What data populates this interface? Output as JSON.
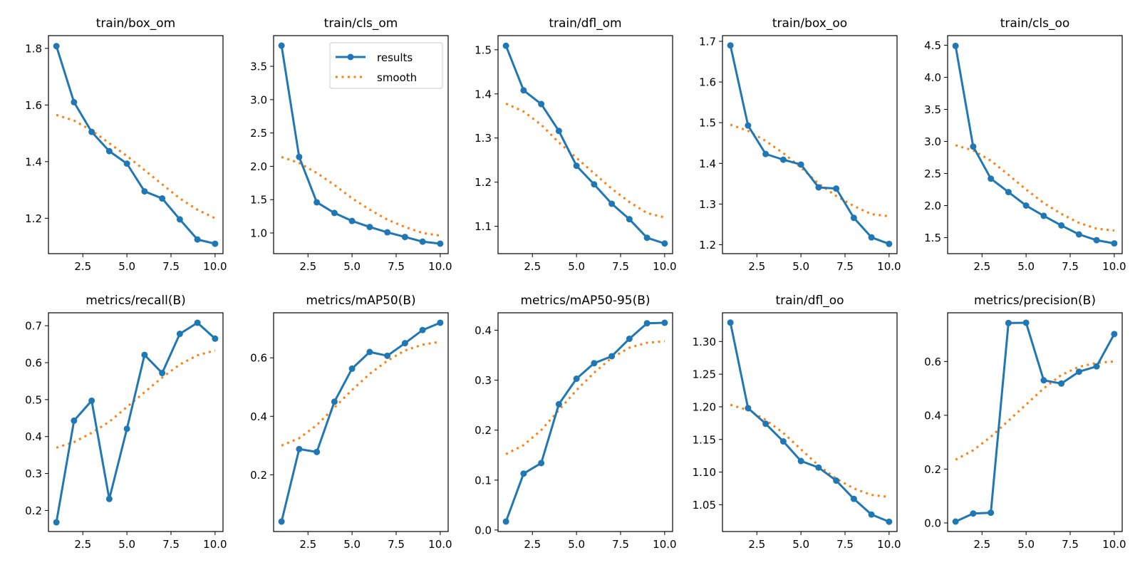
{
  "legend": {
    "results_label": "results",
    "smooth_label": "smooth",
    "placement": "upper-right of train/cls_om panel"
  },
  "colors": {
    "results": "#1f77b4",
    "smooth": "#ff7f0e"
  },
  "chart_data": [
    {
      "type": "line",
      "title": "train/box_om",
      "x": [
        1,
        2,
        3,
        4,
        5,
        6,
        7,
        8,
        9,
        10
      ],
      "xlim": [
        0.55,
        10.45
      ],
      "xticks": [
        2.5,
        5.0,
        7.5,
        10.0
      ],
      "ylim": [
        1.075,
        1.845
      ],
      "yticks": [
        1.2,
        1.4,
        1.6,
        1.8
      ],
      "series": [
        {
          "name": "results",
          "values": [
            1.808,
            1.61,
            1.505,
            1.437,
            1.393,
            1.295,
            1.27,
            1.196,
            1.125,
            1.11
          ]
        },
        {
          "name": "smooth",
          "values": [
            1.565,
            1.545,
            1.51,
            1.465,
            1.42,
            1.37,
            1.32,
            1.27,
            1.23,
            1.2
          ]
        }
      ]
    },
    {
      "type": "line",
      "title": "train/cls_om",
      "x": [
        1,
        2,
        3,
        4,
        5,
        6,
        7,
        8,
        9,
        10
      ],
      "xlim": [
        0.55,
        10.45
      ],
      "xticks": [
        2.5,
        5.0,
        7.5,
        10.0
      ],
      "ylim": [
        0.69,
        3.96
      ],
      "yticks": [
        1.0,
        1.5,
        2.0,
        2.5,
        3.0,
        3.5
      ],
      "legend": true,
      "series": [
        {
          "name": "results",
          "values": [
            3.81,
            2.14,
            1.46,
            1.3,
            1.18,
            1.09,
            1.01,
            0.94,
            0.87,
            0.84
          ]
        },
        {
          "name": "smooth",
          "values": [
            2.14,
            2.05,
            1.9,
            1.72,
            1.52,
            1.35,
            1.2,
            1.09,
            1.0,
            0.96
          ]
        }
      ]
    },
    {
      "type": "line",
      "title": "train/dfl_om",
      "x": [
        1,
        2,
        3,
        4,
        5,
        6,
        7,
        8,
        9,
        10
      ],
      "xlim": [
        0.55,
        10.45
      ],
      "xticks": [
        2.5,
        5.0,
        7.5,
        10.0
      ],
      "ylim": [
        1.038,
        1.532
      ],
      "yticks": [
        1.1,
        1.2,
        1.3,
        1.4,
        1.5
      ],
      "series": [
        {
          "name": "results",
          "values": [
            1.509,
            1.408,
            1.377,
            1.316,
            1.237,
            1.195,
            1.151,
            1.116,
            1.074,
            1.061
          ]
        },
        {
          "name": "smooth",
          "values": [
            1.378,
            1.36,
            1.33,
            1.29,
            1.255,
            1.22,
            1.185,
            1.155,
            1.13,
            1.12
          ]
        }
      ]
    },
    {
      "type": "line",
      "title": "train/box_oo",
      "x": [
        1,
        2,
        3,
        4,
        5,
        6,
        7,
        8,
        9,
        10
      ],
      "xlim": [
        0.55,
        10.45
      ],
      "xticks": [
        2.5,
        5.0,
        7.5,
        10.0
      ],
      "ylim": [
        1.178,
        1.714
      ],
      "yticks": [
        1.2,
        1.3,
        1.4,
        1.5,
        1.6,
        1.7
      ],
      "series": [
        {
          "name": "results",
          "values": [
            1.69,
            1.493,
            1.423,
            1.409,
            1.397,
            1.341,
            1.338,
            1.266,
            1.218,
            1.202
          ]
        },
        {
          "name": "smooth",
          "values": [
            1.495,
            1.48,
            1.455,
            1.425,
            1.39,
            1.35,
            1.32,
            1.295,
            1.275,
            1.27
          ]
        }
      ]
    },
    {
      "type": "line",
      "title": "train/cls_oo",
      "x": [
        1,
        2,
        3,
        4,
        5,
        6,
        7,
        8,
        9,
        10
      ],
      "xlim": [
        0.55,
        10.45
      ],
      "xticks": [
        2.5,
        5.0,
        7.5,
        10.0
      ],
      "ylim": [
        1.25,
        4.65
      ],
      "yticks": [
        1.5,
        2.0,
        2.5,
        3.0,
        3.5,
        4.0,
        4.5
      ],
      "series": [
        {
          "name": "results",
          "values": [
            4.49,
            2.92,
            2.42,
            2.21,
            2.0,
            1.84,
            1.69,
            1.55,
            1.46,
            1.41
          ]
        },
        {
          "name": "smooth",
          "values": [
            2.94,
            2.86,
            2.7,
            2.48,
            2.25,
            2.04,
            1.87,
            1.73,
            1.64,
            1.61
          ]
        }
      ]
    },
    {
      "type": "line",
      "title": "metrics/recall(B)",
      "x": [
        1,
        2,
        3,
        4,
        5,
        6,
        7,
        8,
        9,
        10
      ],
      "xlim": [
        0.55,
        10.45
      ],
      "xticks": [
        2.5,
        5.0,
        7.5,
        10.0
      ],
      "ylim": [
        0.143,
        0.735
      ],
      "yticks": [
        0.2,
        0.3,
        0.4,
        0.5,
        0.6,
        0.7
      ],
      "series": [
        {
          "name": "results",
          "values": [
            0.168,
            0.443,
            0.497,
            0.231,
            0.421,
            0.621,
            0.572,
            0.678,
            0.708,
            0.665
          ]
        },
        {
          "name": "smooth",
          "values": [
            0.37,
            0.385,
            0.41,
            0.44,
            0.48,
            0.52,
            0.56,
            0.595,
            0.62,
            0.633
          ]
        }
      ]
    },
    {
      "type": "line",
      "title": "metrics/mAP50(B)",
      "x": [
        1,
        2,
        3,
        4,
        5,
        6,
        7,
        8,
        9,
        10
      ],
      "xlim": [
        0.55,
        10.45
      ],
      "xticks": [
        2.5,
        5.0,
        7.5,
        10.0
      ],
      "ylim": [
        0.006,
        0.754
      ],
      "yticks": [
        0.2,
        0.4,
        0.6
      ],
      "series": [
        {
          "name": "results",
          "values": [
            0.04,
            0.288,
            0.278,
            0.45,
            0.563,
            0.62,
            0.607,
            0.65,
            0.695,
            0.72
          ]
        },
        {
          "name": "smooth",
          "values": [
            0.3,
            0.325,
            0.37,
            0.43,
            0.49,
            0.545,
            0.59,
            0.625,
            0.645,
            0.655
          ]
        }
      ]
    },
    {
      "type": "line",
      "title": "metrics/mAP50-95(B)",
      "x": [
        1,
        2,
        3,
        4,
        5,
        6,
        7,
        8,
        9,
        10
      ],
      "xlim": [
        0.55,
        10.45
      ],
      "xticks": [
        2.5,
        5.0,
        7.5,
        10.0
      ],
      "ylim": [
        -0.003,
        0.435
      ],
      "yticks": [
        0.0,
        0.1,
        0.2,
        0.3,
        0.4
      ],
      "series": [
        {
          "name": "results",
          "values": [
            0.017,
            0.113,
            0.134,
            0.252,
            0.303,
            0.334,
            0.348,
            0.383,
            0.414,
            0.415
          ]
        },
        {
          "name": "smooth",
          "values": [
            0.152,
            0.17,
            0.2,
            0.24,
            0.28,
            0.315,
            0.345,
            0.365,
            0.375,
            0.378
          ]
        }
      ]
    },
    {
      "type": "line",
      "title": "train/dfl_oo",
      "x": [
        1,
        2,
        3,
        4,
        5,
        6,
        7,
        8,
        9,
        10
      ],
      "xlim": [
        0.55,
        10.45
      ],
      "xticks": [
        2.5,
        5.0,
        7.5,
        10.0
      ],
      "ylim": [
        1.009,
        1.344
      ],
      "yticks": [
        1.05,
        1.1,
        1.15,
        1.2,
        1.25,
        1.3
      ],
      "series": [
        {
          "name": "results",
          "values": [
            1.329,
            1.198,
            1.174,
            1.147,
            1.117,
            1.107,
            1.087,
            1.059,
            1.035,
            1.024
          ]
        },
        {
          "name": "smooth",
          "values": [
            1.203,
            1.195,
            1.18,
            1.16,
            1.135,
            1.11,
            1.09,
            1.075,
            1.065,
            1.062
          ]
        }
      ]
    },
    {
      "type": "line",
      "title": "metrics/precision(B)",
      "x": [
        1,
        2,
        3,
        4,
        5,
        6,
        7,
        8,
        9,
        10
      ],
      "xlim": [
        0.55,
        10.45
      ],
      "xticks": [
        2.5,
        5.0,
        7.5,
        10.0
      ],
      "ylim": [
        -0.032,
        0.781
      ],
      "yticks": [
        0.0,
        0.2,
        0.4,
        0.6
      ],
      "series": [
        {
          "name": "results",
          "values": [
            0.005,
            0.035,
            0.038,
            0.743,
            0.744,
            0.53,
            0.518,
            0.562,
            0.582,
            0.702
          ]
        },
        {
          "name": "smooth",
          "values": [
            0.235,
            0.27,
            0.32,
            0.38,
            0.44,
            0.5,
            0.55,
            0.58,
            0.595,
            0.6
          ]
        }
      ]
    }
  ]
}
